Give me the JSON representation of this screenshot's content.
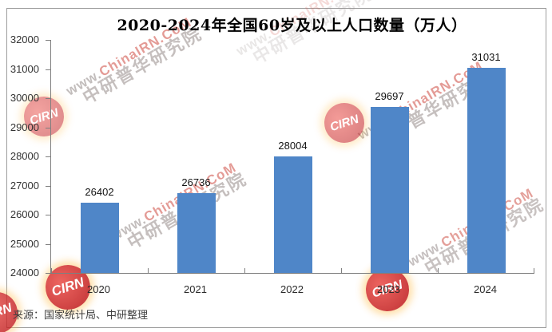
{
  "chart_data": {
    "type": "bar",
    "title": "2020-2024年全国60岁及以上人口数量（万人）",
    "categories": [
      "2020",
      "2021",
      "2022",
      "2023",
      "2024"
    ],
    "values": [
      26402,
      26736,
      28004,
      29697,
      31031
    ],
    "value_labels": [
      "26402",
      "26736",
      "28004",
      "29697",
      "31031"
    ],
    "ylim": [
      24000,
      32000
    ],
    "ytick_step": 1000,
    "yticks": [
      32000,
      31000,
      30000,
      29000,
      28000,
      27000,
      26000,
      25000,
      24000
    ],
    "xlabel": "",
    "ylabel": "",
    "grid": false,
    "legend": false,
    "bar_color": "#4f86c8"
  },
  "source_note": "来源：国家统计局、中研整理",
  "watermark": {
    "url_prefix": "www.",
    "url_main": "ChinaIRN.CoM",
    "brand_text": "中研普华研究院",
    "logo_text": "CIRN",
    "logo_color": "#c42020",
    "url_color": "#d0564c"
  }
}
